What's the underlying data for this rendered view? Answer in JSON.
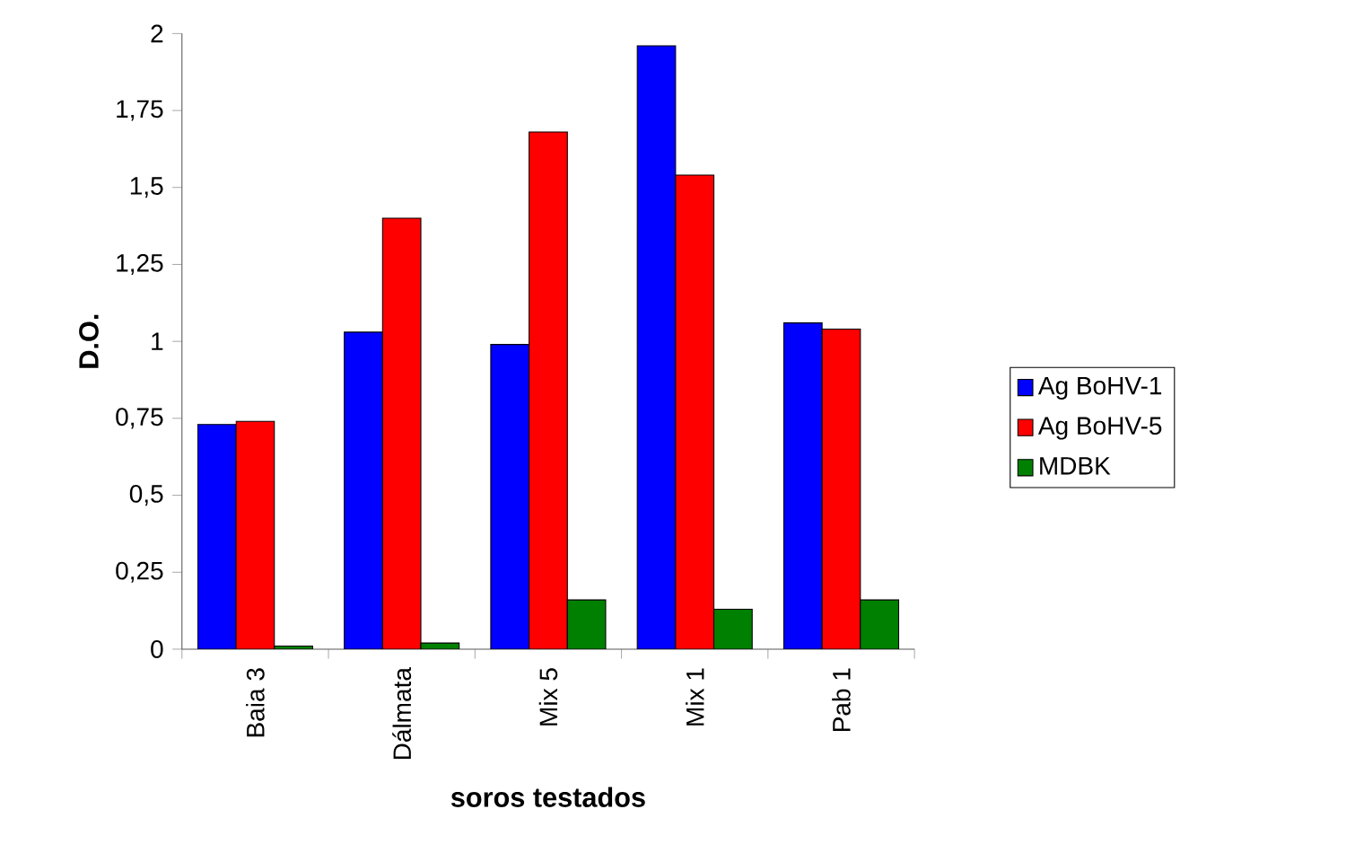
{
  "chart_data": {
    "type": "bar",
    "xlabel": "soros testados",
    "ylabel": "D.O.",
    "categories": [
      "Baia 3",
      "Dálmata",
      "Mix 5",
      "Mix 1",
      "Pab 1"
    ],
    "series": [
      {
        "name": "Ag BoHV-1",
        "color": "#0000ff",
        "values": [
          0.73,
          1.03,
          0.99,
          1.96,
          1.06
        ]
      },
      {
        "name": "Ag BoHV-5",
        "color": "#ff0000",
        "values": [
          0.74,
          1.4,
          1.68,
          1.54,
          1.04
        ]
      },
      {
        "name": "MDBK",
        "color": "#008000",
        "values": [
          0.01,
          0.02,
          0.16,
          0.13,
          0.16
        ]
      }
    ],
    "ylim": [
      0,
      2
    ],
    "yticks": [
      0,
      {
        "value": 0.25,
        "label": "0,25"
      },
      {
        "value": 0.5,
        "label": "0,5"
      },
      {
        "value": 0.75,
        "label": "0,75"
      },
      1,
      {
        "value": 1.25,
        "label": "1,25"
      },
      {
        "value": 1.5,
        "label": "1,5"
      },
      {
        "value": 1.75,
        "label": "1,75"
      },
      2
    ],
    "legend": "right",
    "grid": false
  }
}
